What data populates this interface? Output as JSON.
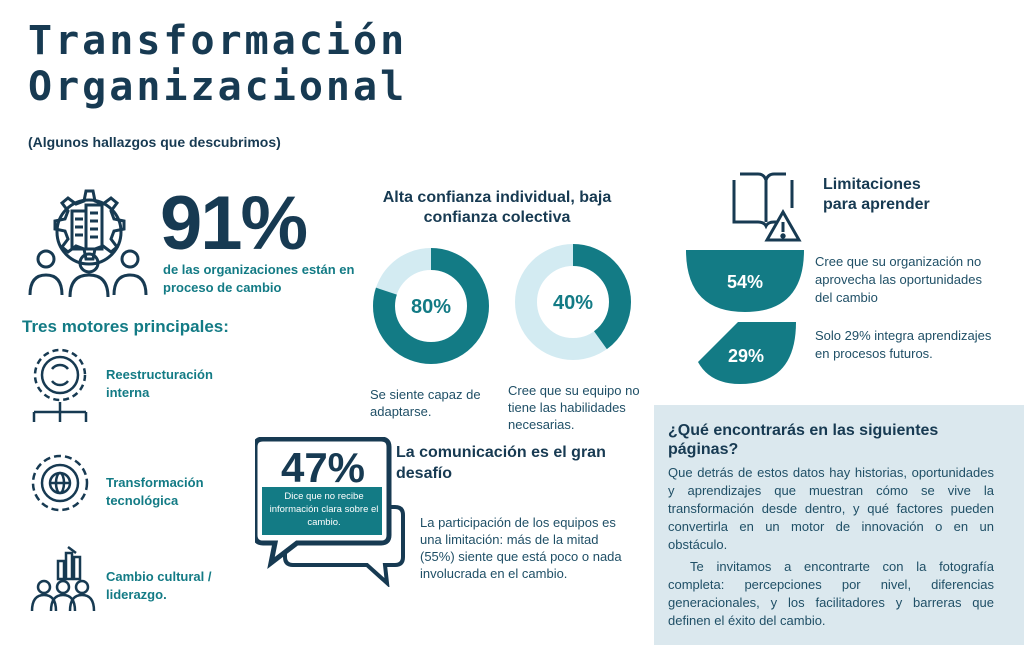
{
  "header": {
    "title_line1": "Transformación",
    "title_line2": "Organizacional",
    "subtitle": "(Algunos hallazgos que descubrimos)"
  },
  "hero_stat": {
    "value": "91%",
    "text": "de las organizaciones están en proceso de cambio"
  },
  "motors": {
    "title": "Tres motores principales:",
    "items": [
      {
        "label": "Reestructuración interna",
        "icon": "gear-refresh-icon"
      },
      {
        "label": "Transformación tecnológica",
        "icon": "gear-globe-icon"
      },
      {
        "label": "Cambio cultural / liderazgo.",
        "icon": "people-chart-icon"
      }
    ]
  },
  "confidence": {
    "title": "Alta confianza individual, baja confianza colectiva",
    "donuts": [
      {
        "value": "80%",
        "fraction": 0.8,
        "caption": "Se siente capaz de adaptarse."
      },
      {
        "value": "40%",
        "fraction": 0.4,
        "caption": "Cree que su equipo no tiene las habilidades necesarias."
      }
    ]
  },
  "limitations": {
    "title": "Limitaciones para aprender",
    "items": [
      {
        "value": "54%",
        "text": "Cree que su organización no aprovecha las oportunidades del cambio"
      },
      {
        "value": "29%",
        "text": "Solo 29% integra aprendizajes en procesos futuros."
      }
    ]
  },
  "communication": {
    "title": "La comunicación es el gran desafío",
    "bubble_value": "47%",
    "bubble_text": "Dice que no recibe información clara sobre el cambio.",
    "text": "La participación de los equipos es una limitación: más de la mitad (55%) siente que está poco o nada involucrada en el cambio."
  },
  "panel": {
    "title": "¿Qué encontrarás en las siguientes páginas?",
    "p1": "Que detrás de estos datos hay historias, oportunidades y aprendizajes que muestran cómo se vive la transformación desde dentro, y qué factores pueden convertirla en un motor de innovación o en un obstáculo.",
    "p2": "Te invitamos a encontrarte con la fotografía completa: percepciones por nivel, diferencias generacionales, y los facilitadores y barreras que definen el éxito del cambio."
  },
  "colors": {
    "navy": "#173a52",
    "teal": "#137b85",
    "light": "#d3ebf2",
    "panel": "#dbe8ee"
  }
}
